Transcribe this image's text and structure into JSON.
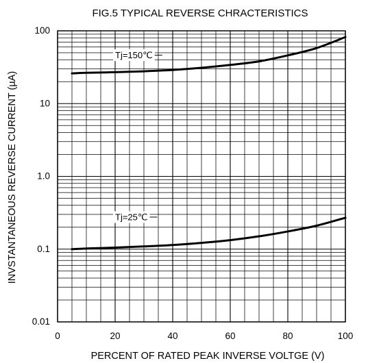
{
  "chart_data": {
    "type": "line",
    "title": "FIG.5 TYPICAL REVERSE CHRACTERISTICS",
    "xlabel": "PERCENT OF RATED PEAK INVERSE VOLTGE  (V)",
    "ylabel": "INVSTANTANEOUS REVERSE CURRENT (µA)",
    "xlim": [
      0,
      100
    ],
    "ylim": [
      0.01,
      100
    ],
    "yscale": "log",
    "grid": true,
    "x_ticks": [
      0,
      20,
      40,
      60,
      80,
      100
    ],
    "x_tick_labels": [
      "0",
      "20",
      "40",
      "60",
      "80",
      "100"
    ],
    "y_ticks": [
      0.01,
      0.1,
      1,
      10,
      100
    ],
    "y_tick_labels": [
      "0.01",
      "0.1",
      "1.0",
      "10",
      "100"
    ],
    "series": [
      {
        "name": "Tj=150℃",
        "x": [
          5,
          10,
          20,
          30,
          40,
          50,
          60,
          70,
          80,
          90,
          100
        ],
        "y": [
          26,
          26.5,
          27,
          27.8,
          29,
          31,
          34,
          38,
          46,
          58,
          82
        ]
      },
      {
        "name": "Tj=25℃",
        "x": [
          5,
          10,
          20,
          30,
          40,
          50,
          60,
          70,
          80,
          90,
          100
        ],
        "y": [
          0.1,
          0.102,
          0.105,
          0.109,
          0.114,
          0.122,
          0.133,
          0.15,
          0.175,
          0.21,
          0.27
        ]
      }
    ],
    "annotations": [
      {
        "text": "Tj=150℃",
        "x": 20,
        "y": 42,
        "series": 0
      },
      {
        "text": "Tj=25℃",
        "x": 20,
        "y": 0.25,
        "series": 1
      }
    ]
  }
}
